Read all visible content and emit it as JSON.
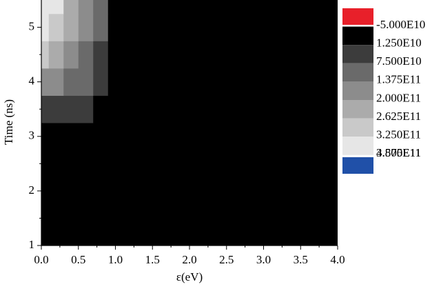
{
  "chart_data": {
    "type": "contour",
    "xlabel": "ε(eV)",
    "ylabel": "Time (ns)",
    "xlim": [
      0,
      4
    ],
    "ylim": [
      1,
      5.5
    ],
    "xticks": [
      {
        "value": 0,
        "label": "0.0"
      },
      {
        "value": 0.5,
        "label": "0.5"
      },
      {
        "value": 1,
        "label": "1.0"
      },
      {
        "value": 1.5,
        "label": "1.5"
      },
      {
        "value": 2,
        "label": "2.0"
      },
      {
        "value": 2.5,
        "label": "2.5"
      },
      {
        "value": 3,
        "label": "3.0"
      },
      {
        "value": 3.5,
        "label": "3.5"
      },
      {
        "value": 4,
        "label": "4.0"
      }
    ],
    "yticks": [
      1,
      2,
      3,
      4,
      5
    ],
    "x": [
      0,
      0.2,
      0.4,
      0.6,
      0.8,
      1.0,
      4.0
    ],
    "y": [
      1,
      3.0,
      3.5,
      4.0,
      4.5,
      5.0,
      5.5
    ],
    "z": [
      [
        0,
        0,
        0,
        0,
        0,
        0,
        0
      ],
      [
        0,
        0,
        0,
        0,
        0,
        0,
        0
      ],
      [
        70000000000,
        70000000000,
        60000000000,
        50000000000,
        0,
        0,
        0
      ],
      [
        160000000000,
        140000000000,
        110000000000,
        90000000000,
        50000000000,
        0,
        0
      ],
      [
        300000000000,
        260000000000,
        200000000000,
        120000000000,
        70000000000,
        0,
        0
      ],
      [
        360000000000,
        320000000000,
        240000000000,
        150000000000,
        80000000000,
        0,
        0
      ],
      [
        385000000000,
        340000000000,
        260000000000,
        160000000000,
        90000000000,
        0,
        0
      ]
    ],
    "levels": [
      {
        "value": -50000000000,
        "label": "-5.000E10"
      },
      {
        "value": 12500000000,
        "label": "1.250E10"
      },
      {
        "value": 75000000000,
        "label": "7.500E10"
      },
      {
        "value": 137500000000,
        "label": "1.375E11"
      },
      {
        "value": 200000000000,
        "label": "2.000E11"
      },
      {
        "value": 262500000000,
        "label": "2.625E11"
      },
      {
        "value": 325000000000,
        "label": "3.250E11"
      },
      {
        "value": 387500000000,
        "label": "3.875E11"
      },
      {
        "value": 450000000000,
        "label": "4.500E11"
      }
    ],
    "level_colors": [
      "#e8202a",
      "#000000",
      "#3c3c3c",
      "#6a6a6a",
      "#8c8c8c",
      "#ababab",
      "#c9c9c9",
      "#e6e6e6",
      "#2050a8"
    ]
  }
}
